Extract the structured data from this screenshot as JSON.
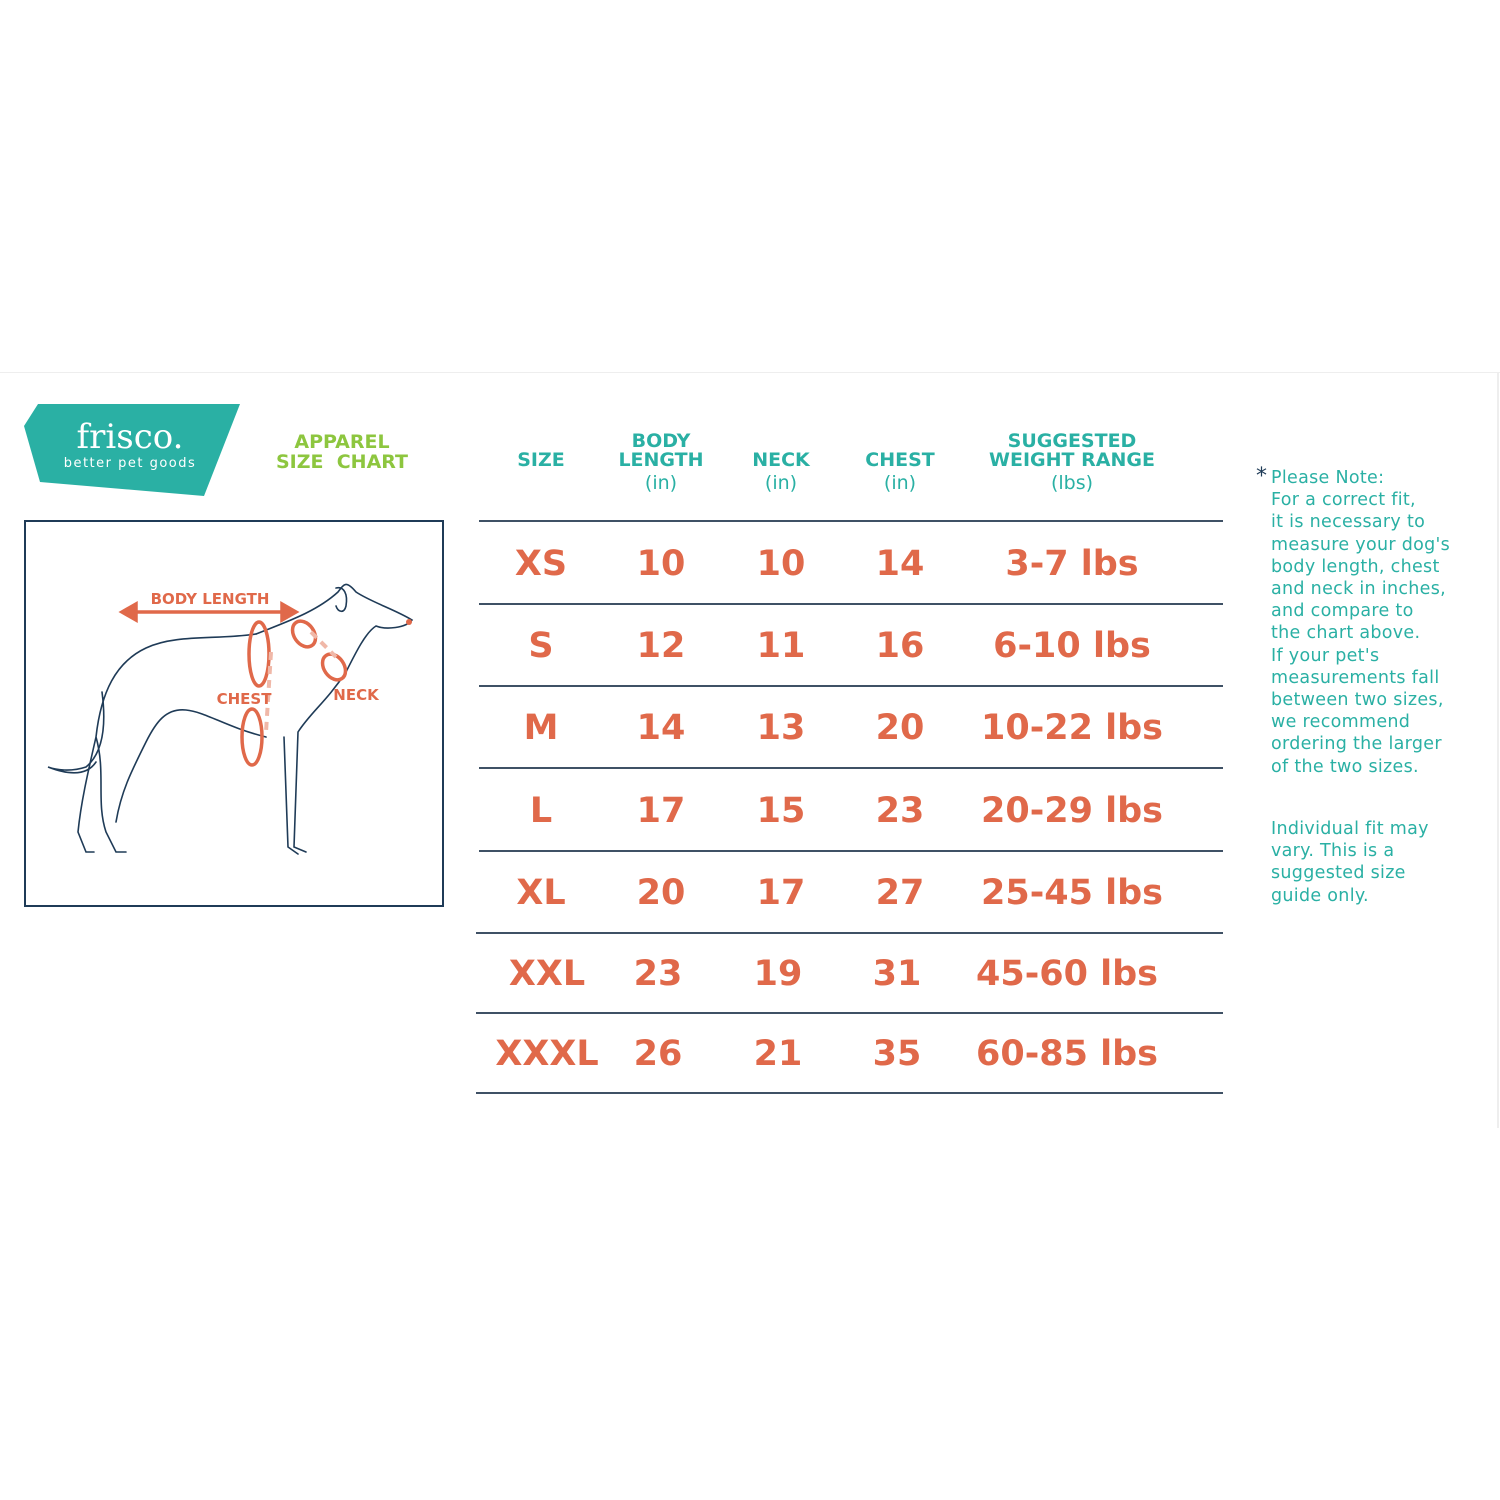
{
  "brand": {
    "name": "frisco.",
    "tagline": "better pet goods",
    "color": "#2ab0a4"
  },
  "title": {
    "line1": "APPAREL",
    "line2": "SIZE  CHART",
    "color": "#8dc63f"
  },
  "diagram": {
    "labels": {
      "body_length": "BODY LENGTH",
      "chest": "CHEST",
      "neck": "NECK"
    },
    "accent": "#e0694a"
  },
  "table": {
    "headers": [
      {
        "lines": [
          "SIZE"
        ],
        "unit": ""
      },
      {
        "lines": [
          "BODY",
          "LENGTH"
        ],
        "unit": "(in)"
      },
      {
        "lines": [
          "NECK"
        ],
        "unit": "(in)"
      },
      {
        "lines": [
          "CHEST"
        ],
        "unit": "(in)"
      },
      {
        "lines": [
          "SUGGESTED",
          "WEIGHT RANGE"
        ],
        "unit": "(lbs)"
      }
    ],
    "rows": [
      [
        "XS",
        "10",
        "10",
        "14",
        "3-7 lbs"
      ],
      [
        "S",
        "12",
        "11",
        "16",
        "6-10 lbs"
      ],
      [
        "M",
        "14",
        "13",
        "20",
        "10-22 lbs"
      ],
      [
        "L",
        "17",
        "15",
        "23",
        "20-29 lbs"
      ],
      [
        "XL",
        "20",
        "17",
        "27",
        "25-45 lbs"
      ],
      [
        "XXL",
        "23",
        "19",
        "31",
        "45-60 lbs"
      ],
      [
        "XXXL",
        "26",
        "21",
        "35",
        "60-85 lbs"
      ]
    ],
    "value_color": "#e0694a"
  },
  "note": {
    "asterisk": "*",
    "lines": [
      "Please Note:",
      "For a correct fit,",
      "it is necessary to",
      "measure your dog's",
      "body length, chest",
      "and neck in inches,",
      "and compare to",
      "the chart above.",
      "If your pet's",
      "measurements fall",
      "between two sizes,",
      "we recommend",
      "ordering the larger",
      "of the two sizes."
    ],
    "disclaimer": [
      "Individual fit may",
      "vary. This is a",
      "suggested size",
      "guide only."
    ]
  }
}
